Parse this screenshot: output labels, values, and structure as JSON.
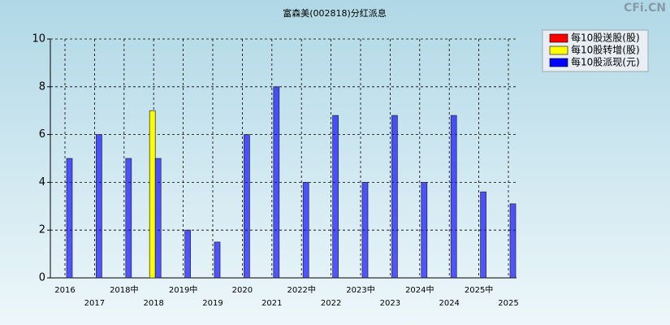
{
  "chart_data": {
    "type": "bar",
    "title": "富森美(002818)分红派息",
    "watermark": "CFi.CN",
    "categories": [
      "2016",
      "2017",
      "2018中",
      "2018",
      "2019中",
      "2019",
      "2020",
      "2021",
      "2022中",
      "2022",
      "2023中",
      "2023",
      "2024中",
      "2024",
      "2025中",
      "2025"
    ],
    "series": [
      {
        "name": "每10股送股(股)",
        "color": "#ff0000",
        "values": [
          null,
          null,
          null,
          null,
          null,
          null,
          null,
          null,
          null,
          null,
          null,
          null,
          null,
          null,
          null,
          null
        ]
      },
      {
        "name": "每10股转增(股)",
        "color": "#ffff00",
        "values": [
          null,
          null,
          null,
          7,
          null,
          null,
          null,
          null,
          null,
          null,
          null,
          null,
          null,
          null,
          null,
          null
        ]
      },
      {
        "name": "每10股派现(元)",
        "color": "#0000ff",
        "values": [
          5,
          6,
          5,
          5,
          2,
          1.5,
          6,
          8,
          4,
          6.8,
          4,
          6.8,
          4,
          6.8,
          3.6,
          3.1
        ]
      }
    ],
    "ylim": [
      0,
      10
    ],
    "yticks": [
      0,
      2,
      4,
      6,
      8,
      10
    ],
    "grid": true,
    "legend": "top-right"
  }
}
